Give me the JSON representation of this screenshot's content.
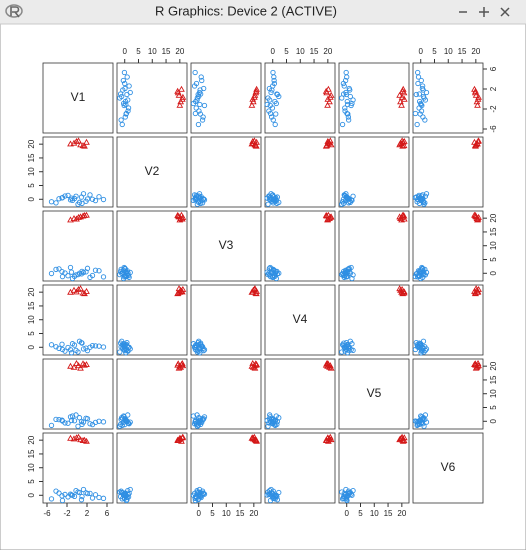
{
  "window": {
    "title": "R Graphics: Device 2 (ACTIVE)"
  },
  "chart_data": {
    "type": "scatter-matrix",
    "variables": [
      {
        "name": "V1",
        "lim": [
          -6.8,
          7.2
        ],
        "ticks": [
          -6,
          -2,
          2,
          6
        ]
      },
      {
        "name": "V2",
        "lim": [
          -2.8,
          22.6
        ],
        "ticks": [
          0,
          5,
          10,
          15,
          20
        ]
      },
      {
        "name": "V3",
        "lim": [
          -2.8,
          22.6
        ],
        "ticks": [
          0,
          5,
          10,
          15,
          20
        ]
      },
      {
        "name": "V4",
        "lim": [
          -2.8,
          22.6
        ],
        "ticks": [
          0,
          5,
          10,
          15,
          20
        ]
      },
      {
        "name": "V5",
        "lim": [
          -2.8,
          22.6
        ],
        "ticks": [
          0,
          5,
          10,
          15,
          20
        ]
      },
      {
        "name": "V6",
        "lim": [
          -2.8,
          22.6
        ],
        "ticks": [
          0,
          5,
          10,
          15,
          20
        ]
      }
    ],
    "groups": [
      {
        "color": "#2f8fe3",
        "marker": "circle",
        "observations": [
          [
            -0.5,
            0.3,
            -1.1,
            0.8,
            0.2,
            -0.4
          ],
          [
            1.8,
            -0.7,
            0.5,
            -0.3,
            1.1,
            0.9
          ],
          [
            -2.4,
            1.2,
            0.1,
            -1.4,
            -0.6,
            0.3
          ],
          [
            3.1,
            0.0,
            -0.8,
            0.6,
            -1.2,
            -1.0
          ],
          [
            -4.2,
            -1.3,
            1.4,
            0.2,
            0.7,
            1.5
          ],
          [
            0.9,
            0.8,
            -0.2,
            1.7,
            -0.1,
            -1.6
          ],
          [
            -1.3,
            -0.2,
            2.1,
            -0.9,
            1.6,
            0.4
          ],
          [
            2.6,
            1.6,
            -1.5,
            0.0,
            -0.9,
            0.7
          ],
          [
            -3.0,
            0.5,
            0.6,
            1.1,
            0.4,
            -0.2
          ],
          [
            0.2,
            -1.8,
            -0.5,
            -1.7,
            -1.8,
            1.2
          ],
          [
            4.4,
            0.9,
            0.9,
            0.4,
            0.0,
            -0.8
          ],
          [
            -0.9,
            -0.4,
            -1.9,
            1.3,
            1.9,
            0.0
          ],
          [
            1.3,
            2.0,
            0.3,
            -0.6,
            -0.3,
            2.1
          ],
          [
            -5.1,
            -0.9,
            -0.1,
            0.9,
            -1.5,
            -1.3
          ],
          [
            2.1,
            0.1,
            1.8,
            -1.2,
            0.9,
            0.6
          ],
          [
            -1.8,
            1.4,
            -0.9,
            -0.1,
            -0.7,
            -0.6
          ],
          [
            0.5,
            -1.1,
            0.0,
            2.2,
            1.3,
            1.0
          ],
          [
            -2.9,
            0.6,
            -1.2,
            -0.8,
            0.1,
            -1.9
          ],
          [
            3.7,
            -0.5,
            1.1,
            0.5,
            -0.4,
            0.2
          ],
          [
            -0.2,
            1.1,
            -0.6,
            -1.1,
            2.3,
            1.7
          ],
          [
            1.0,
            -1.5,
            0.7,
            1.5,
            -1.1,
            -0.5
          ],
          [
            -3.6,
            0.2,
            1.6,
            -0.4,
            0.6,
            0.8
          ],
          [
            5.3,
            -0.1,
            -1.3,
            0.1,
            -0.2,
            -1.1
          ],
          [
            -1.1,
            0.4,
            0.4,
            -2.0,
            0.3,
            0.1
          ]
        ]
      },
      {
        "color": "#d41818",
        "marker": "triangle",
        "observations": [
          [
            -0.6,
            20.3,
            19.8,
            20.6,
            19.5,
            20.4
          ],
          [
            1.2,
            19.4,
            20.7,
            19.6,
            20.8,
            19.8
          ],
          [
            0.3,
            21.1,
            20.2,
            20.9,
            20.1,
            21.0
          ],
          [
            -1.3,
            20.0,
            19.3,
            19.9,
            19.9,
            20.6
          ],
          [
            1.9,
            20.6,
            21.0,
            20.2,
            20.5,
            19.5
          ],
          [
            0.7,
            19.7,
            20.4,
            21.2,
            19.2,
            20.1
          ],
          [
            -0.1,
            20.9,
            19.6,
            20.0,
            20.9,
            20.8
          ],
          [
            1.5,
            19.2,
            20.9,
            19.4,
            20.3,
            19.9
          ]
        ]
      }
    ]
  }
}
